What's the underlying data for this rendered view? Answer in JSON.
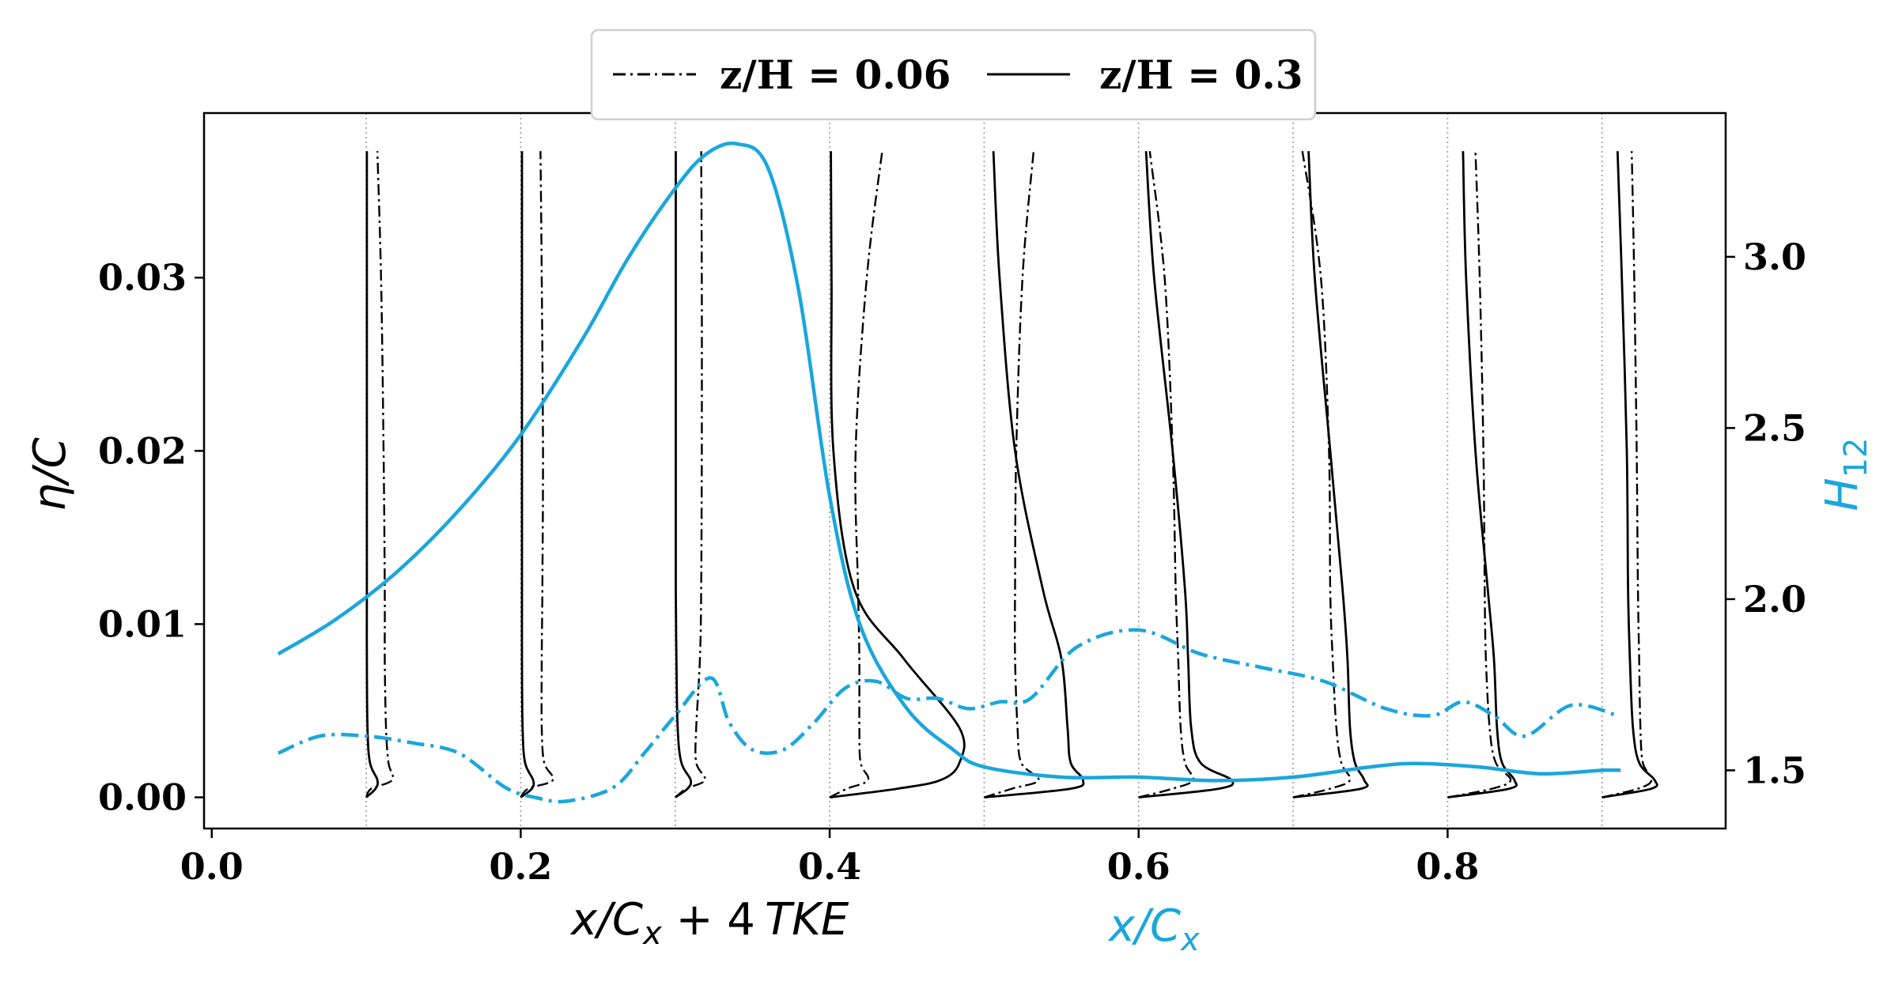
{
  "colors": {
    "accent": "#1ba6dc",
    "ink": "#000000",
    "grid": "#9a9a9a",
    "legend_border": "#cfcfcf"
  },
  "chart_data": {
    "type": "line",
    "legend": {
      "placement": "top-center",
      "entries": [
        {
          "label": "z/H = 0.06",
          "style": "dash-dot"
        },
        {
          "label": "z/H = 0.3",
          "style": "solid"
        }
      ]
    },
    "x_axis": {
      "range": [
        -0.005,
        0.98
      ],
      "ticks": [
        0.0,
        0.2,
        0.4,
        0.6,
        0.8
      ],
      "tick_labels": [
        "0.0",
        "0.2",
        "0.4",
        "0.6",
        "0.8"
      ],
      "label_black": {
        "main": "x/C",
        "sub": "x",
        "rest": " + 4",
        "tke": "TKE"
      },
      "label_blue": {
        "main": "x/C",
        "sub": "x"
      }
    },
    "y_axis_left": {
      "range": [
        -0.0018,
        0.0395
      ],
      "ticks": [
        0.0,
        0.01,
        0.02,
        0.03
      ],
      "tick_labels": [
        "0.00",
        "0.01",
        "0.02",
        "0.03"
      ],
      "label": "η/C"
    },
    "y_axis_right": {
      "range": [
        1.33,
        3.42
      ],
      "ticks": [
        1.5,
        2.0,
        2.5,
        3.0
      ],
      "tick_labels": [
        "1.5",
        "2.0",
        "2.5",
        "3.0"
      ],
      "label_main": "H",
      "label_sub": "12"
    },
    "stations": [
      0.1,
      0.2,
      0.3,
      0.4,
      0.5,
      0.6,
      0.7,
      0.8,
      0.9
    ],
    "profiles_eta": [
      0.0,
      0.0005,
      0.001,
      0.002,
      0.004,
      0.008,
      0.012,
      0.02,
      0.03,
      0.0373
    ],
    "profiles_z006_tke": [
      [
        0.0,
        0.0008,
        0.0042,
        0.0036,
        0.0032,
        0.003,
        0.003,
        0.0028,
        0.0024,
        0.0018
      ],
      [
        0.0,
        0.0012,
        0.0052,
        0.0038,
        0.0034,
        0.0034,
        0.0035,
        0.0036,
        0.0034,
        0.0032
      ],
      [
        0.0,
        0.0018,
        0.0048,
        0.0034,
        0.0034,
        0.004,
        0.0042,
        0.0043,
        0.0043,
        0.0042
      ],
      [
        0.0,
        0.0028,
        0.0062,
        0.005,
        0.0048,
        0.0048,
        0.0046,
        0.0042,
        0.006,
        0.0085
      ],
      [
        0.0,
        0.0045,
        0.0088,
        0.006,
        0.0054,
        0.005,
        0.005,
        0.0052,
        0.0062,
        0.008
      ],
      [
        0.0,
        0.0055,
        0.0088,
        0.0075,
        0.0068,
        0.0064,
        0.006,
        0.0055,
        0.0042,
        0.0018
      ],
      [
        0.0,
        0.006,
        0.0092,
        0.0078,
        0.007,
        0.0064,
        0.006,
        0.0058,
        0.0045,
        0.0015
      ],
      [
        0.0,
        0.0072,
        0.0102,
        0.0078,
        0.0068,
        0.0062,
        0.006,
        0.0058,
        0.0052,
        0.0045
      ],
      [
        0.0,
        0.0058,
        0.008,
        0.0066,
        0.0062,
        0.006,
        0.0058,
        0.0056,
        0.0052,
        0.0048
      ]
    ],
    "profiles_z03_tke": [
      [
        0.0,
        0.0015,
        0.0018,
        0.0006,
        0.0002,
        0.0001,
        0.0001,
        0.0001,
        0.0001,
        0.0001
      ],
      [
        0.0,
        0.0018,
        0.002,
        0.0007,
        0.0003,
        0.0002,
        0.0002,
        0.0002,
        0.0002,
        0.0002
      ],
      [
        0.0,
        0.002,
        0.0025,
        0.001,
        0.0004,
        0.0002,
        0.0001,
        0.0001,
        0.0001,
        0.0001
      ],
      [
        0.0,
        0.011,
        0.018,
        0.021,
        0.021,
        0.012,
        0.004,
        0.0006,
        0.0003,
        0.0002
      ],
      [
        0.0,
        0.014,
        0.016,
        0.014,
        0.0135,
        0.0125,
        0.0095,
        0.005,
        0.0025,
        0.0015
      ],
      [
        0.0,
        0.013,
        0.015,
        0.01,
        0.0085,
        0.008,
        0.0075,
        0.0055,
        0.0025,
        0.0012
      ],
      [
        0.0,
        0.011,
        0.0115,
        0.01,
        0.0092,
        0.0088,
        0.008,
        0.006,
        0.0035,
        0.0025
      ],
      [
        0.0,
        0.01,
        0.0108,
        0.0088,
        0.008,
        0.0075,
        0.0065,
        0.0045,
        0.003,
        0.0025
      ],
      [
        0.0,
        0.008,
        0.0085,
        0.006,
        0.005,
        0.0045,
        0.0042,
        0.004,
        0.0032,
        0.0025
      ]
    ],
    "h12_z03": {
      "x": [
        0.043,
        0.08,
        0.12,
        0.16,
        0.2,
        0.24,
        0.27,
        0.3,
        0.32,
        0.34,
        0.36,
        0.38,
        0.4,
        0.42,
        0.45,
        0.48,
        0.5,
        0.55,
        0.6,
        0.65,
        0.7,
        0.75,
        0.78,
        0.82,
        0.86,
        0.9,
        0.912
      ],
      "h": [
        1.84,
        1.94,
        2.08,
        2.26,
        2.48,
        2.76,
        3.0,
        3.2,
        3.3,
        3.33,
        3.26,
        2.9,
        2.3,
        1.92,
        1.68,
        1.56,
        1.51,
        1.48,
        1.48,
        1.47,
        1.48,
        1.51,
        1.52,
        1.51,
        1.49,
        1.5,
        1.5
      ]
    },
    "h12_z006": {
      "x": [
        0.043,
        0.07,
        0.1,
        0.13,
        0.16,
        0.19,
        0.21,
        0.23,
        0.26,
        0.28,
        0.3,
        0.323,
        0.335,
        0.35,
        0.37,
        0.39,
        0.41,
        0.43,
        0.45,
        0.47,
        0.49,
        0.51,
        0.53,
        0.56,
        0.6,
        0.64,
        0.68,
        0.72,
        0.76,
        0.79,
        0.81,
        0.83,
        0.85,
        0.88,
        0.91
      ],
      "h": [
        1.55,
        1.6,
        1.6,
        1.58,
        1.55,
        1.45,
        1.42,
        1.41,
        1.45,
        1.55,
        1.66,
        1.77,
        1.64,
        1.56,
        1.56,
        1.64,
        1.74,
        1.76,
        1.71,
        1.71,
        1.68,
        1.7,
        1.71,
        1.86,
        1.91,
        1.84,
        1.8,
        1.76,
        1.68,
        1.66,
        1.7,
        1.66,
        1.6,
        1.69,
        1.66
      ]
    }
  }
}
